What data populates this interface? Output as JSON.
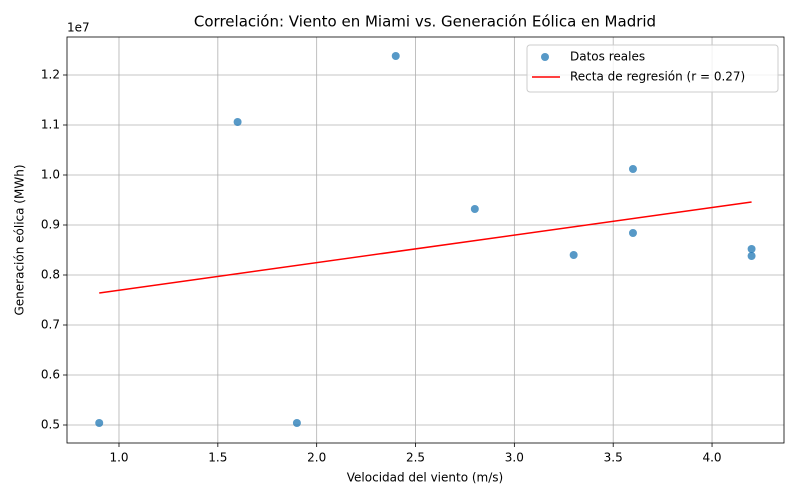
{
  "chart_data": {
    "type": "scatter",
    "title": "Correlación: Viento en Miami vs. Generación Eólica en Madrid",
    "x_label": "Velocidad del viento (m/s)",
    "y_label": "Generación eólica (MWh)",
    "y_offset_label": "1e7",
    "xlim": [
      0.737,
      4.364
    ],
    "ylim": [
      4640000,
      12760000
    ],
    "xticks": [
      {
        "value": 1,
        "label": "1.0"
      },
      {
        "value": 1.5,
        "label": "1.5"
      },
      {
        "value": 2,
        "label": "2.0"
      },
      {
        "value": 2.5,
        "label": "2.5"
      },
      {
        "value": 3,
        "label": "3.0"
      },
      {
        "value": 3.5,
        "label": "3.5"
      },
      {
        "value": 4,
        "label": "4.0"
      }
    ],
    "yticks": [
      {
        "value": 5000000,
        "label": "0.5"
      },
      {
        "value": 6000000,
        "label": "0.6"
      },
      {
        "value": 7000000,
        "label": "0.7"
      },
      {
        "value": 8000000,
        "label": "0.8"
      },
      {
        "value": 9000000,
        "label": "0.9"
      },
      {
        "value": 10000000,
        "label": "1.0"
      },
      {
        "value": 11000000,
        "label": "1.1"
      },
      {
        "value": 12000000,
        "label": "1.2"
      }
    ],
    "grid": true,
    "legend": "upper right",
    "series": [
      {
        "name": "Datos reales",
        "type": "scatter",
        "color": "#1f77b4",
        "x": [
          0.9,
          1.6,
          1.9,
          2.4,
          2.8,
          3.3,
          3.6,
          3.6,
          4.2,
          4.2
        ],
        "values": [
          5040000,
          11060000,
          5040000,
          12380000,
          9320000,
          8400000,
          10120000,
          8840000,
          8520000,
          8380000
        ]
      },
      {
        "name": "Recta de regresión (r = 0.27)",
        "type": "line",
        "color": "#ff0000",
        "x": [
          0.9,
          4.2
        ],
        "values": [
          7640000,
          9460000
        ]
      }
    ]
  }
}
